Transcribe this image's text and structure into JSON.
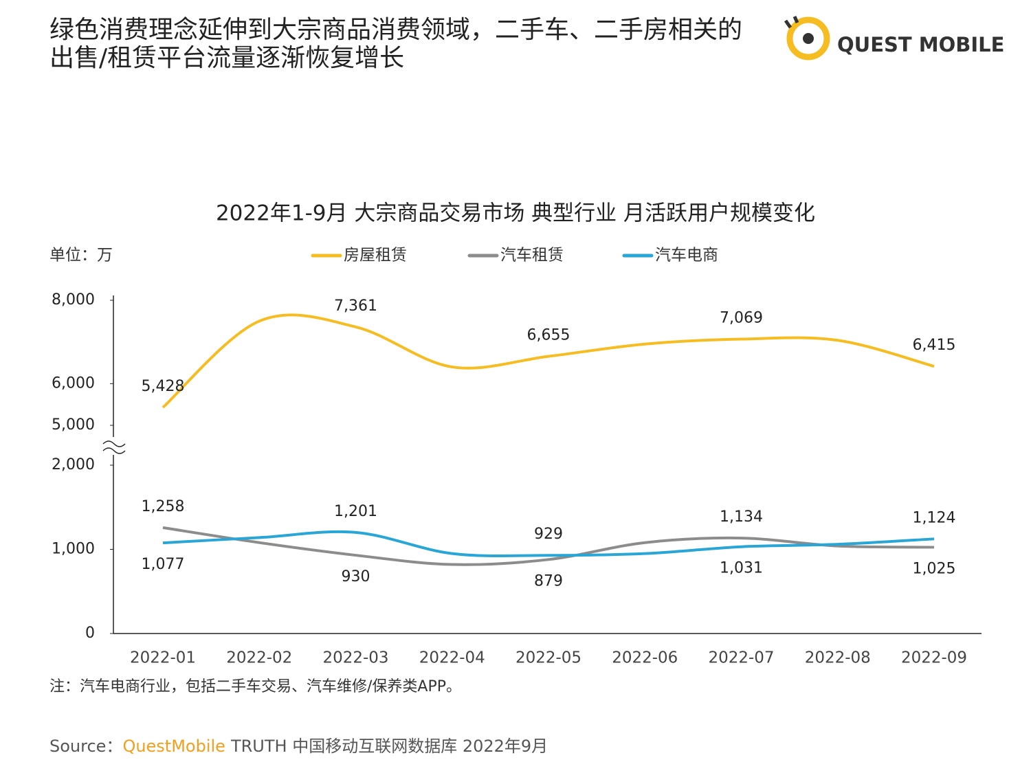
{
  "header": {
    "title_lines": [
      "绿色消费理念延伸到大宗商品消费领域，二手车、二手房相关的",
      "出售/租赁平台流量逐渐恢复增长"
    ],
    "logo": "QUEST MOBILE"
  },
  "chart_data": {
    "type": "line",
    "title": "2022年1-9月 大宗商品交易市场 典型行业 月活跃用户规模变化",
    "y_label": "单位：万",
    "categories": [
      "2022-01",
      "2022-02",
      "2022-03",
      "2022-04",
      "2022-05",
      "2022-06",
      "2022-07",
      "2022-08",
      "2022-09"
    ],
    "series": [
      {
        "name": "房屋租赁",
        "color": "#f5bd22",
        "values": [
          5428,
          7500,
          7361,
          6400,
          6655,
          6950,
          7069,
          7040,
          6415
        ],
        "value_labels": [
          "5,428",
          null,
          "7,361",
          null,
          "6,655",
          null,
          "7,069",
          null,
          "6,415"
        ]
      },
      {
        "name": "汽车租赁",
        "color": "#8c8c8c",
        "values": [
          1258,
          1080,
          930,
          820,
          879,
          1080,
          1134,
          1040,
          1025
        ],
        "value_labels": [
          "1,258",
          null,
          "930",
          null,
          "879",
          null,
          "1,134",
          null,
          "1,025"
        ]
      },
      {
        "name": "汽车电商",
        "color": "#2aa6d6",
        "values": [
          1077,
          1140,
          1201,
          950,
          929,
          950,
          1031,
          1060,
          1124
        ],
        "value_labels": [
          "1,077",
          null,
          "1,201",
          null,
          "929",
          null,
          "1,031",
          null,
          "1,124"
        ]
      }
    ],
    "ylim": [
      0,
      8000
    ],
    "axis_break": [
      2000,
      5000
    ],
    "yticks": [
      0,
      {
        "value": 1000,
        "label": "1,000"
      },
      {
        "value": 2000,
        "label": "2,000"
      },
      {
        "value": 5000,
        "label": "5,000"
      },
      {
        "value": 6000,
        "label": "6,000"
      },
      {
        "value": 8000,
        "label": "8,000"
      }
    ],
    "legend": "top",
    "grid": false
  },
  "footer": {
    "note": "注：汽车电商行业，包括二手车交易、汽车维修/保养类APP。",
    "source_prefix": "Source：",
    "source_brand": "QuestMobile",
    "source_rest": "TRUTH 中国移动互联网数据库 2022年9月"
  }
}
